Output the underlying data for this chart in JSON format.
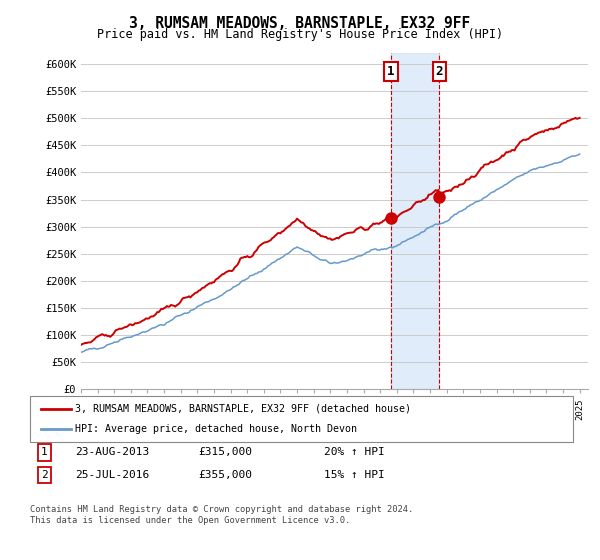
{
  "title": "3, RUMSAM MEADOWS, BARNSTAPLE, EX32 9FF",
  "subtitle": "Price paid vs. HM Land Registry's House Price Index (HPI)",
  "ylabel_ticks": [
    "£0",
    "£50K",
    "£100K",
    "£150K",
    "£200K",
    "£250K",
    "£300K",
    "£350K",
    "£400K",
    "£450K",
    "£500K",
    "£550K",
    "£600K"
  ],
  "ytick_values": [
    0,
    50000,
    100000,
    150000,
    200000,
    250000,
    300000,
    350000,
    400000,
    450000,
    500000,
    550000,
    600000
  ],
  "ylim": [
    0,
    620000
  ],
  "hpi_color": "#6699cc",
  "price_color": "#cc0000",
  "purchase1_year": 2013.65,
  "purchase1_price": 315000,
  "purchase1_date": "23-AUG-2013",
  "purchase1_pct": "20% ↑ HPI",
  "purchase2_year": 2016.56,
  "purchase2_price": 355000,
  "purchase2_date": "25-JUL-2016",
  "purchase2_pct": "15% ↑ HPI",
  "legend_line1": "3, RUMSAM MEADOWS, BARNSTAPLE, EX32 9FF (detached house)",
  "legend_line2": "HPI: Average price, detached house, North Devon",
  "footer": "Contains HM Land Registry data © Crown copyright and database right 2024.\nThis data is licensed under the Open Government Licence v3.0.",
  "table_row1": [
    "1",
    "23-AUG-2013",
    "£315,000",
    "20% ↑ HPI"
  ],
  "table_row2": [
    "2",
    "25-JUL-2016",
    "£355,000",
    "15% ↑ HPI"
  ],
  "xmin": 1995,
  "xmax": 2025.5
}
